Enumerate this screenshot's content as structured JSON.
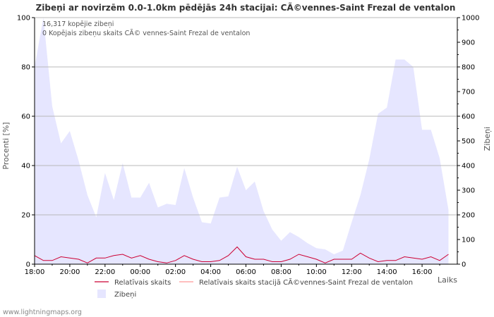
{
  "chart_data": {
    "type": "area",
    "title": "Zibeņi ar novirzēm 0.0-1.0km pēdējās 24h stacijai: CÃ©vennes-Saint Frezal de ventalon",
    "ylabel_left": "Procenti   [%]",
    "ylabel_right": "Zibeņi",
    "xlabel": "Laiks",
    "info_lines": [
      "16,317 kopējie zibeņi",
      "0 Kopējais zibeņu skaits CÃ© vennes-Saint Frezal de ventalon"
    ],
    "ylim_left": [
      0,
      100
    ],
    "ylim_right": [
      0,
      1000
    ],
    "left_ticks": [
      "0",
      "20",
      "40",
      "60",
      "80",
      "100"
    ],
    "right_ticks": [
      "0",
      "100",
      "200",
      "300",
      "400",
      "500",
      "600",
      "700",
      "800",
      "900",
      "1000"
    ],
    "x_ticks": [
      "18:00",
      "20:00",
      "22:00",
      "00:00",
      "02:00",
      "04:00",
      "06:00",
      "08:00",
      "10:00",
      "12:00",
      "14:00",
      "16:00"
    ],
    "x_hours": [
      0,
      0.5,
      1,
      1.5,
      2,
      2.5,
      3,
      3.5,
      4,
      4.5,
      5,
      5.5,
      6,
      6.5,
      7,
      7.5,
      8,
      8.5,
      9,
      9.5,
      10,
      10.5,
      11,
      11.5,
      12,
      12.5,
      13,
      13.5,
      14,
      14.5,
      15,
      15.5,
      16,
      16.5,
      17,
      17.5,
      18,
      18.5,
      19,
      19.5,
      20,
      20.5,
      21,
      21.5,
      22,
      22.5,
      23,
      23.5
    ],
    "series": [
      {
        "name": "Zibeņi",
        "axis": "right",
        "color": "#e6e6ff",
        "values": [
          800,
          1000,
          640,
          490,
          540,
          420,
          280,
          190,
          370,
          260,
          410,
          270,
          270,
          330,
          230,
          245,
          240,
          390,
          270,
          170,
          165,
          270,
          275,
          395,
          300,
          335,
          215,
          140,
          95,
          130,
          110,
          85,
          65,
          60,
          40,
          55,
          170,
          280,
          425,
          610,
          635,
          830,
          830,
          800,
          545,
          545,
          430,
          220
        ]
      },
      {
        "name": "Relatīvais skaits",
        "axis": "left",
        "color": "#cc0033",
        "values": [
          3.5,
          1.5,
          1.5,
          3,
          2.5,
          2,
          0.5,
          2.5,
          2.5,
          3.5,
          4,
          2.5,
          3.5,
          2,
          1,
          0.5,
          1.5,
          3.5,
          2,
          1,
          1,
          1.5,
          3.5,
          7,
          3,
          2,
          2,
          1,
          1,
          2,
          4,
          3,
          2,
          0.5,
          2,
          2,
          2,
          4.5,
          2.5,
          1,
          1.5,
          1.5,
          3,
          2.5,
          2,
          3,
          1.5,
          4
        ]
      },
      {
        "name": "Relatīvais skaits stacijā CÃ©vennes-Saint Frezal de ventalon",
        "axis": "left",
        "color": "#ff9999",
        "values": []
      }
    ],
    "legend": [
      "Relatīvais skaits",
      "Relatīvais skaits stacijā CÃ©vennes-Saint Frezal de ventalon",
      "Zibeņi"
    ]
  },
  "footer": "www.lightningmaps.org"
}
